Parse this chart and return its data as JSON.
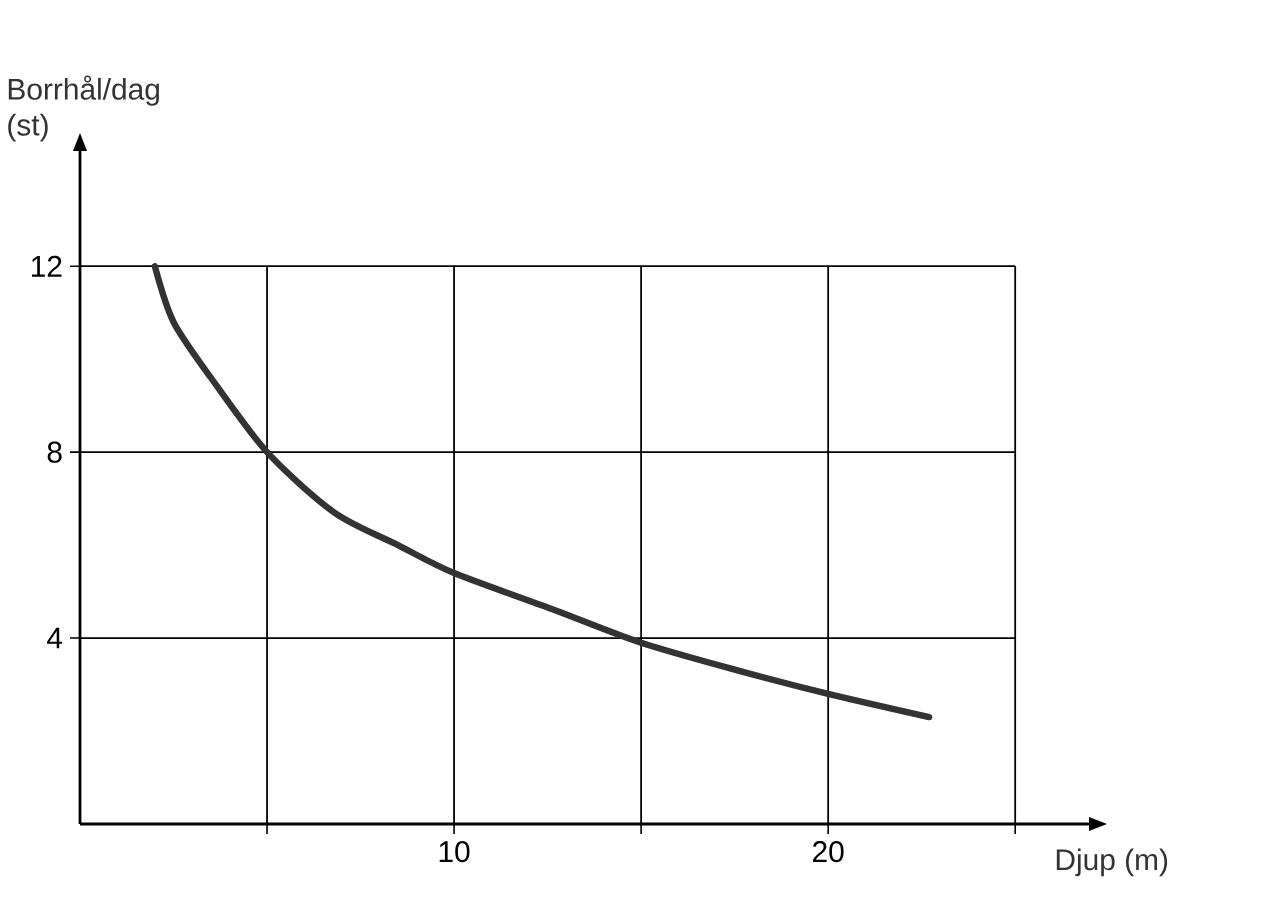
{
  "chart_data": {
    "type": "line",
    "xlabel": "Djup (m)",
    "ylabel": "Borrhål/dag (st)",
    "x": [
      2.0,
      2.5,
      3.5,
      5.0,
      6.8,
      8.5,
      10,
      12.7,
      15,
      17.6,
      20,
      22.7
    ],
    "series": [
      {
        "color": "#333333",
        "values": [
          12.0,
          10.8,
          9.6,
          8.0,
          6.7,
          6.0,
          5.4,
          4.6,
          3.9,
          3.3,
          2.8,
          2.3
        ]
      }
    ],
    "xlim": [
      0,
      27
    ],
    "ylim": [
      0,
      14.5
    ],
    "xticks": [
      {
        "value": 5,
        "label": null
      },
      10,
      {
        "value": 15,
        "label": null
      },
      20,
      {
        "value": 25,
        "label": null
      }
    ],
    "yticks": [
      4,
      8,
      12
    ],
    "grid": true,
    "line_style": "solid"
  }
}
